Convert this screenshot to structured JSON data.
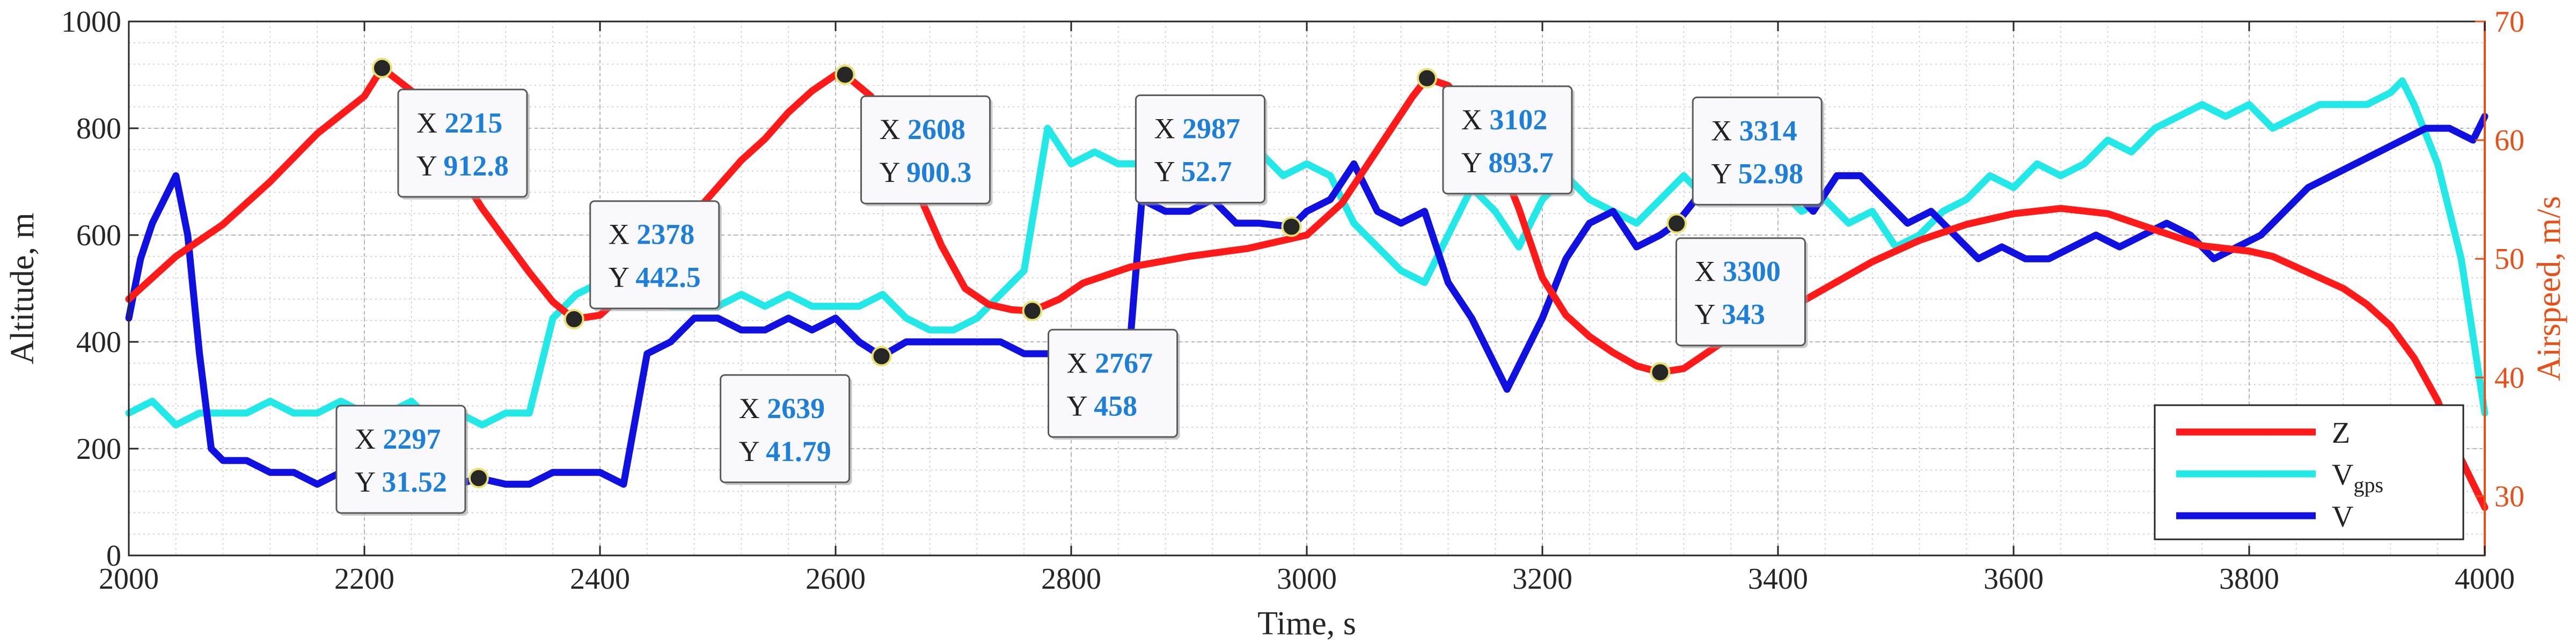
{
  "chart_data": {
    "type": "line",
    "xlabel": "Time, s",
    "ylabel_left": "Altitude, m",
    "ylabel_right": "Airspeed, m/s",
    "xlim": [
      2000,
      4000
    ],
    "ylim_left": [
      0,
      1000
    ],
    "ylim_right": [
      25,
      70
    ],
    "x_ticks": [
      "2000",
      "2200",
      "2400",
      "2600",
      "2800",
      "3000",
      "3200",
      "3400",
      "3600",
      "3800",
      "4000"
    ],
    "y_left_ticks": [
      "0",
      "200",
      "400",
      "600",
      "800",
      "1000"
    ],
    "y_right_ticks": [
      "30",
      "40",
      "50",
      "60",
      "70"
    ],
    "grid": true,
    "minor_grid": true,
    "legend_position": "bottom-right",
    "colors": {
      "Z": "#ff1a1a",
      "Vgps": "#22e8e8",
      "V": "#1010e0",
      "right_axis": "#e8501a"
    },
    "legend": [
      {
        "key": "Z",
        "label": "Z",
        "sub": ""
      },
      {
        "key": "Vgps",
        "label": "V",
        "sub": "gps"
      },
      {
        "key": "V",
        "label": "V",
        "sub": ""
      }
    ],
    "series": [
      {
        "key": "Z",
        "axis": "left",
        "x": [
          2000,
          2040,
          2080,
          2120,
          2160,
          2200,
          2215,
          2240,
          2260,
          2280,
          2300,
          2320,
          2340,
          2360,
          2378,
          2400,
          2420,
          2440,
          2460,
          2480,
          2500,
          2520,
          2540,
          2560,
          2580,
          2600,
          2608,
          2630,
          2650,
          2670,
          2690,
          2710,
          2730,
          2750,
          2767,
          2790,
          2810,
          2850,
          2900,
          2950,
          3000,
          3030,
          3060,
          3090,
          3102,
          3120,
          3140,
          3160,
          3180,
          3200,
          3220,
          3240,
          3260,
          3280,
          3300,
          3320,
          3340,
          3360,
          3380,
          3400,
          3440,
          3480,
          3520,
          3560,
          3600,
          3640,
          3680,
          3720,
          3760,
          3800,
          3820,
          3840,
          3860,
          3880,
          3900,
          3920,
          3940,
          3960,
          3980,
          4000
        ],
        "y": [
          480,
          560,
          620,
          700,
          790,
          860,
          912.8,
          870,
          800,
          720,
          650,
          590,
          530,
          475,
          442.5,
          450,
          490,
          530,
          590,
          640,
          690,
          740,
          780,
          830,
          870,
          900,
          900.3,
          860,
          780,
          680,
          580,
          500,
          470,
          460,
          458,
          480,
          510,
          540,
          560,
          575,
          600,
          660,
          760,
          860,
          893.7,
          880,
          830,
          760,
          650,
          520,
          450,
          410,
          380,
          355,
          343,
          350,
          380,
          410,
          430,
          450,
          500,
          550,
          590,
          620,
          640,
          650,
          640,
          610,
          580,
          570,
          560,
          540,
          520,
          500,
          470,
          430,
          370,
          290,
          180,
          90
        ]
      },
      {
        "key": "Vgps",
        "axis": "right",
        "x": [
          2000,
          2020,
          2040,
          2060,
          2080,
          2100,
          2120,
          2140,
          2160,
          2180,
          2200,
          2220,
          2240,
          2260,
          2280,
          2300,
          2320,
          2340,
          2360,
          2380,
          2400,
          2420,
          2440,
          2460,
          2480,
          2500,
          2520,
          2540,
          2560,
          2580,
          2600,
          2620,
          2640,
          2660,
          2680,
          2700,
          2720,
          2740,
          2760,
          2780,
          2800,
          2820,
          2840,
          2860,
          2880,
          2900,
          2920,
          2940,
          2950,
          2960,
          2980,
          3000,
          3020,
          3040,
          3060,
          3080,
          3100,
          3120,
          3140,
          3160,
          3180,
          3200,
          3220,
          3240,
          3260,
          3280,
          3300,
          3320,
          3340,
          3360,
          3380,
          3400,
          3420,
          3440,
          3460,
          3480,
          3500,
          3520,
          3540,
          3560,
          3580,
          3600,
          3620,
          3640,
          3660,
          3680,
          3700,
          3720,
          3740,
          3760,
          3780,
          3800,
          3820,
          3840,
          3860,
          3880,
          3900,
          3920,
          3930,
          3940,
          3960,
          3980,
          4000
        ],
        "y": [
          37,
          38,
          36,
          37,
          37,
          37,
          38,
          37,
          37,
          38,
          37,
          37,
          38,
          36,
          37,
          36,
          37,
          37,
          45,
          47,
          48,
          48,
          47,
          46,
          46,
          46,
          47,
          46,
          47,
          46,
          46,
          46,
          47,
          45,
          44,
          44,
          45,
          47,
          49,
          61,
          58,
          59,
          58,
          58,
          57,
          56,
          58,
          63,
          63,
          59,
          57,
          58,
          57,
          53,
          51,
          49,
          48,
          52,
          56,
          54,
          51,
          55,
          57,
          55,
          54,
          53,
          55,
          57,
          55,
          56,
          55,
          56,
          54,
          55,
          53,
          54,
          51,
          52,
          54,
          55,
          57,
          56,
          58,
          57,
          58,
          60,
          59,
          61,
          62,
          63,
          62,
          63,
          61,
          62,
          63,
          63,
          63,
          64,
          65,
          63,
          58,
          50,
          37
        ]
      },
      {
        "key": "V",
        "axis": "right",
        "x": [
          2000,
          2010,
          2020,
          2030,
          2040,
          2050,
          2060,
          2070,
          2080,
          2100,
          2120,
          2140,
          2160,
          2180,
          2200,
          2220,
          2240,
          2260,
          2280,
          2297,
          2320,
          2340,
          2360,
          2380,
          2400,
          2420,
          2440,
          2460,
          2480,
          2500,
          2520,
          2540,
          2560,
          2580,
          2600,
          2620,
          2639,
          2660,
          2680,
          2700,
          2720,
          2740,
          2760,
          2780,
          2800,
          2820,
          2840,
          2850,
          2860,
          2880,
          2900,
          2920,
          2940,
          2960,
          2987,
          3000,
          3020,
          3040,
          3060,
          3080,
          3100,
          3120,
          3140,
          3160,
          3170,
          3180,
          3200,
          3220,
          3240,
          3260,
          3280,
          3300,
          3314,
          3330,
          3350,
          3370,
          3390,
          3410,
          3430,
          3450,
          3470,
          3490,
          3510,
          3530,
          3550,
          3570,
          3590,
          3610,
          3630,
          3650,
          3670,
          3690,
          3710,
          3730,
          3750,
          3770,
          3790,
          3810,
          3830,
          3850,
          3870,
          3890,
          3910,
          3930,
          3950,
          3970,
          3990,
          4000
        ],
        "y": [
          45,
          50,
          53,
          55,
          57,
          52,
          42,
          34,
          33,
          33,
          32,
          32,
          31,
          32,
          32,
          31,
          32,
          31,
          31,
          31.52,
          31,
          31,
          32,
          32,
          32,
          31,
          42,
          43,
          45,
          45,
          44,
          44,
          45,
          44,
          45,
          43,
          41.79,
          43,
          43,
          43,
          43,
          43,
          42,
          42,
          42,
          43,
          42,
          43,
          55,
          54,
          54,
          55,
          53,
          53,
          52.7,
          54,
          55,
          58,
          54,
          53,
          54,
          48,
          45,
          41,
          39,
          41,
          45,
          50,
          53,
          54,
          51,
          52,
          52.98,
          55,
          56,
          55,
          56,
          56,
          54,
          57,
          57,
          55,
          53,
          54,
          52,
          50,
          51,
          50,
          50,
          51,
          52,
          51,
          52,
          53,
          52,
          50,
          51,
          52,
          54,
          56,
          57,
          58,
          59,
          60,
          61,
          61,
          60,
          62
        ]
      }
    ],
    "datatips": [
      {
        "series": "Z",
        "x": "2215",
        "y": "912.8"
      },
      {
        "series": "V",
        "x": "2297",
        "y": "31.52"
      },
      {
        "series": "Z",
        "x": "2378",
        "y": "442.5"
      },
      {
        "series": "Z",
        "x": "2608",
        "y": "900.3"
      },
      {
        "series": "V",
        "x": "2639",
        "y": "41.79"
      },
      {
        "series": "Z",
        "x": "2767",
        "y": "458"
      },
      {
        "series": "V",
        "x": "2987",
        "y": "52.7"
      },
      {
        "series": "Z",
        "x": "3102",
        "y": "893.7"
      },
      {
        "series": "Z",
        "x": "3300",
        "y": "343"
      },
      {
        "series": "V",
        "x": "3314",
        "y": "52.98"
      }
    ],
    "tip_prefix_x": "X",
    "tip_prefix_y": "Y"
  }
}
